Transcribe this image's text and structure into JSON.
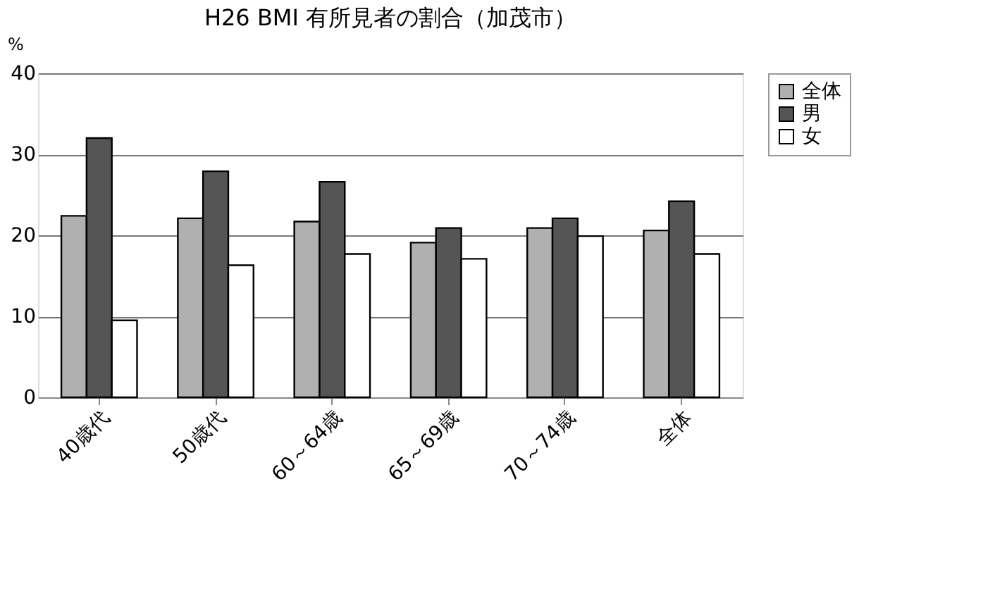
{
  "chart_data": {
    "type": "bar",
    "title": "H26  BMI 有所見者の割合（加茂市）",
    "ylabel": "%",
    "categories": [
      "40歳代",
      "50歳代",
      "60～64歳",
      "65～69歳",
      "70～74歳",
      "全体"
    ],
    "series": [
      {
        "name": "全体",
        "color": "#b0b0b0",
        "values": [
          22.4,
          22.1,
          21.7,
          19.1,
          20.9,
          20.6
        ]
      },
      {
        "name": "男",
        "color": "#555555",
        "values": [
          32.0,
          27.9,
          26.6,
          20.9,
          22.1,
          24.2
        ]
      },
      {
        "name": "女",
        "color": "#ffffff",
        "values": [
          9.5,
          16.3,
          17.7,
          17.1,
          19.9,
          17.7
        ]
      }
    ],
    "ylim": [
      0,
      40
    ],
    "yticks": [
      0,
      10,
      20,
      30,
      40
    ],
    "grid": "y",
    "legend": "right"
  }
}
